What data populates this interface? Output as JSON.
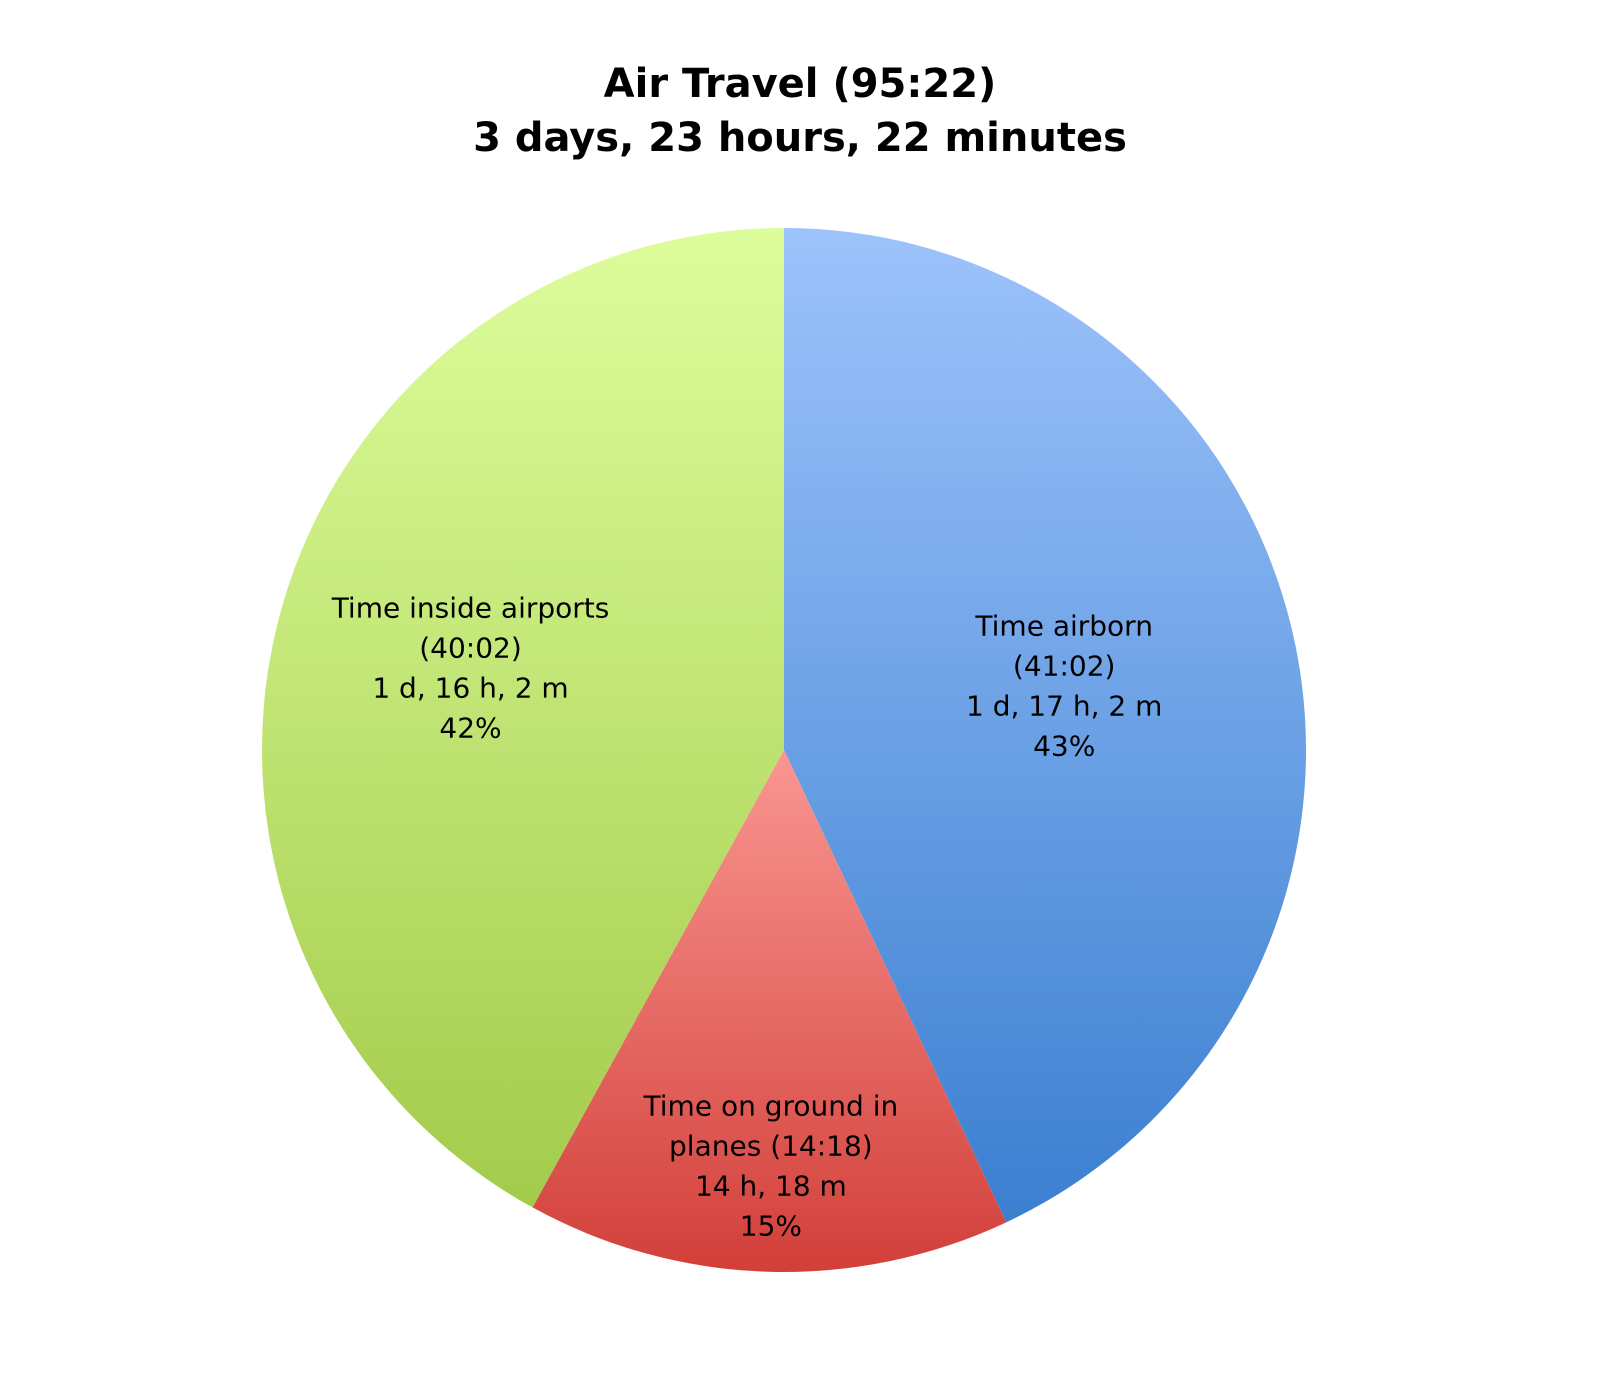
{
  "chart_data": {
    "type": "pie",
    "title": "Air Travel (95:22)",
    "subtitle": "3 days, 23 hours, 22 minutes",
    "labels": [
      [
        "Time airborn",
        "(41:02)"
      ],
      [
        "Time on ground in",
        "planes (14:18)"
      ],
      [
        "Time inside airports",
        "(40:02)"
      ]
    ],
    "duration_labels": [
      "1 d, 17 h, 2 m",
      "14 h, 18 m",
      "1 d, 16 h, 2 m"
    ],
    "values": [
      43,
      15,
      42
    ],
    "value_labels": [
      "43%",
      "15%",
      "42%"
    ],
    "colors": [
      [
        "#9dc3fb",
        "#3b7fd0"
      ],
      [
        "#fa9691",
        "#d23f3a"
      ],
      [
        "#ddfd9c",
        "#a3cb4b"
      ]
    ]
  }
}
